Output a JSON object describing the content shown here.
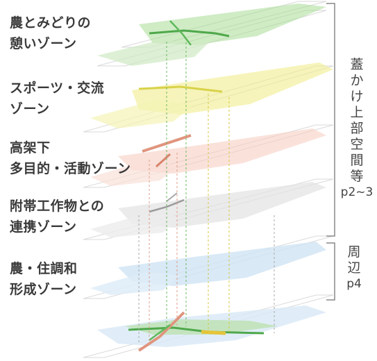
{
  "zones": [
    {
      "id": "agri-green",
      "lines": [
        "農とみどりの",
        "憩いゾーン"
      ],
      "color": "#8fcf7a"
    },
    {
      "id": "sports",
      "lines": [
        "スポーツ・交流",
        "ゾーン"
      ],
      "color": "#e8e36a"
    },
    {
      "id": "under-viaduct",
      "lines": [
        "高架下",
        "多目的・活動ゾーン"
      ],
      "color": "#f2b9a8"
    },
    {
      "id": "attached-structures",
      "lines": [
        "附帯工作物との",
        "連携ゾーン"
      ],
      "color": "#c9c9c9"
    },
    {
      "id": "agri-residential",
      "lines": [
        "農・住調和",
        "形成ゾーン"
      ],
      "color": "#a9cdea"
    }
  ],
  "brackets": {
    "upper": {
      "chars": [
        "蓋",
        "か",
        "け",
        "上",
        "部",
        "空",
        "間",
        "等"
      ],
      "page": "p2~3"
    },
    "lower": {
      "chars": [
        "周",
        "辺"
      ],
      "page": "p4"
    }
  }
}
